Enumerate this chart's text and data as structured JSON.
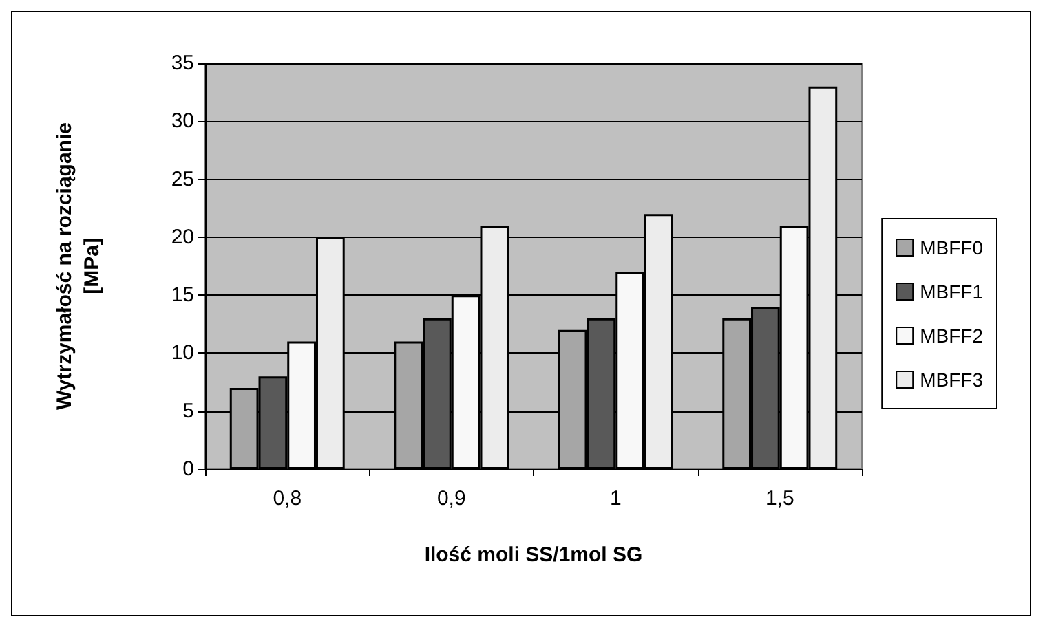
{
  "chart_data": {
    "type": "bar",
    "xlabel": "Ilość moli SS/1mol SG",
    "ylabel": "Wytrzymałość na rozciąganie\n[MPa]",
    "categories": [
      "0,8",
      "0,9",
      "1",
      "1,5"
    ],
    "series": [
      {
        "name": "MBFF0",
        "color": "#a6a6a6",
        "values": [
          7,
          11,
          12,
          13
        ]
      },
      {
        "name": "MBFF1",
        "color": "#595959",
        "values": [
          8,
          13,
          13,
          14
        ]
      },
      {
        "name": "MBFF2",
        "color": "#f8f8f8",
        "values": [
          11,
          15,
          17,
          21
        ]
      },
      {
        "name": "MBFF3",
        "color": "#ececec",
        "values": [
          20,
          21,
          22,
          33
        ]
      }
    ],
    "ylim": [
      0,
      35
    ],
    "yticks": [
      0,
      5,
      10,
      15,
      20,
      25,
      30,
      35
    ],
    "grid": "y",
    "legend": "right"
  }
}
